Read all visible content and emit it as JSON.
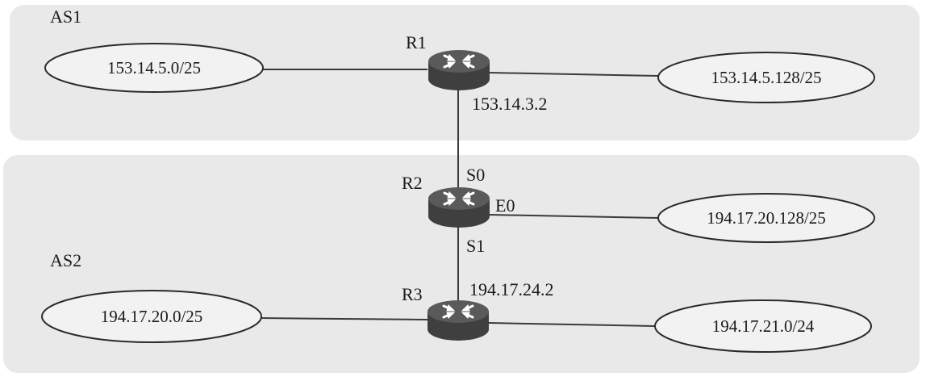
{
  "colors": {
    "as_background": "#e9e9e9",
    "router_body": "#3f3f3f",
    "router_top": "#5a5a5a",
    "line": "#3a3a3a"
  },
  "areas": [
    {
      "id": "as1",
      "label": "AS1"
    },
    {
      "id": "as2",
      "label": "AS2"
    }
  ],
  "routers": [
    {
      "id": "r1",
      "label": "R1",
      "icon": "router-icon"
    },
    {
      "id": "r2",
      "label": "R2",
      "icon": "router-icon"
    },
    {
      "id": "r3",
      "label": "R3",
      "icon": "router-icon"
    }
  ],
  "networks": [
    {
      "id": "net1",
      "label": "153.14.5.0/25"
    },
    {
      "id": "net2",
      "label": "153.14.5.128/25"
    },
    {
      "id": "net3",
      "label": "194.17.20.128/25"
    },
    {
      "id": "net4",
      "label": "194.17.20.0/25"
    },
    {
      "id": "net5",
      "label": "194.17.21.0/24"
    }
  ],
  "interface_labels": {
    "r1_link_ip": "153.14.3.2",
    "r2_s0": "S0",
    "r2_e0": "E0",
    "r2_s1": "S1",
    "r3_link_ip": "194.17.24.2"
  }
}
